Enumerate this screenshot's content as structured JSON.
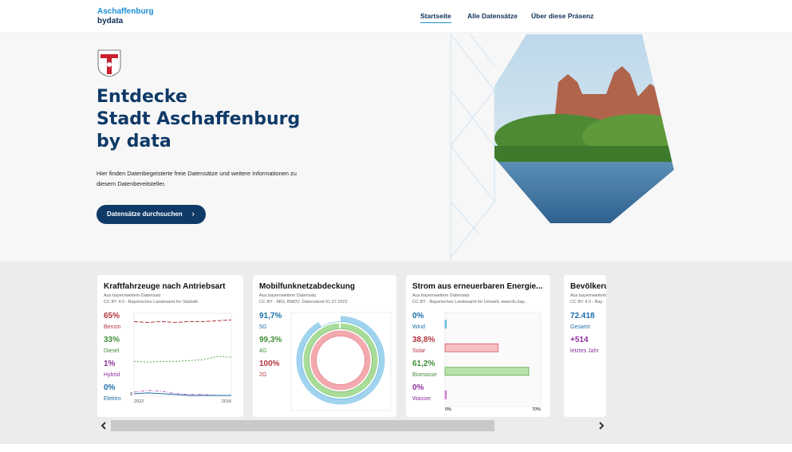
{
  "header": {
    "logo_line1": "Aschaffenburg",
    "logo_line2": "bydata",
    "nav": [
      "Startseite",
      "Alle Datensätze",
      "Über diese Präsenz"
    ]
  },
  "hero": {
    "title_lines": [
      "Entdecke",
      "Stadt Aschaffenburg",
      "by data"
    ],
    "description_lines": [
      "Hier finden Datenbegeisterte freie Datensätze und weitere Informationen zu",
      "diesem Datenbereitsteller."
    ],
    "button": "Datensätze durchsuchen"
  },
  "cards": [
    {
      "title": "Kraftfahrzeuge nach Antriebsart",
      "source_lines": [
        "Aus bayernweitem Datensatz",
        "CC BY 4.0 - Bayerisches Landesamt für Statistik"
      ],
      "stats": [
        {
          "value": "65%",
          "label": "Benzin",
          "color": "#b3343f"
        },
        {
          "value": "33%",
          "label": "Diesel",
          "color": "#3f8f3a"
        },
        {
          "value": "1%",
          "label": "Hybrid",
          "color": "#8e2f9e"
        },
        {
          "value": "0%",
          "label": "Elektro",
          "color": "#1c6fa8"
        }
      ],
      "chart": {
        "type": "line",
        "x_labels": [
          "2022",
          "2018"
        ],
        "ylim": [
          0,
          100
        ],
        "yticks": [
          0
        ],
        "series": [
          {
            "color": "#b3343f",
            "values": [
              90,
              89,
              90,
              89,
              90,
              90,
              91,
              92
            ]
          },
          {
            "color": "#5aa84f",
            "values": [
              42,
              41,
              42,
              42,
              43,
              44,
              48,
              47
            ]
          },
          {
            "color": "#c25cc9",
            "values": [
              5,
              7,
              6,
              3,
              2,
              2,
              1,
              1
            ]
          },
          {
            "color": "#1c6fa8",
            "values": [
              3,
              4,
              3,
              2,
              1,
              1,
              1,
              1
            ]
          }
        ]
      }
    },
    {
      "title": "Mobilfunknetzabdeckung",
      "source_lines": [
        "Aus bayernweitem Datensatz",
        "CC BY - MIG, BMDV. Datenstand 01.07.2022"
      ],
      "stats": [
        {
          "value": "91,7%",
          "label": "5G",
          "color": "#1c6fa8"
        },
        {
          "value": "99,3%",
          "label": "4G",
          "color": "#3f8f3a"
        },
        {
          "value": "100%",
          "label": "2G",
          "color": "#b3343f"
        }
      ],
      "chart": {
        "type": "rings",
        "values": [
          91.7,
          99.3,
          100
        ],
        "colors": [
          "#9fd3ee",
          "#a8dc98",
          "#f3a9ae"
        ],
        "strokes": [
          "#4aa3d6",
          "#5aa84f",
          "#d9535e"
        ]
      }
    },
    {
      "title": "Strom aus erneuerbaren Energie...",
      "source_lines": [
        "Aus bayernweitem Datensatz",
        "CC BY - Bayerisches Landesamt für Umwelt, www.lfu.bay..."
      ],
      "stats": [
        {
          "value": "0%",
          "label": "Wind",
          "color": "#1c6fa8"
        },
        {
          "value": "38,8%",
          "label": "Solar",
          "color": "#b3343f"
        },
        {
          "value": "61,2%",
          "label": "Biomasse",
          "color": "#3f8f3a"
        },
        {
          "value": "0%",
          "label": "Wasser",
          "color": "#8e2f9e"
        }
      ],
      "chart": {
        "type": "hbar",
        "values": [
          0,
          38.8,
          61.2,
          0
        ],
        "colors": [
          "#9fd3ee",
          "#f7c1c5",
          "#b9e3a8",
          "#e6b3ea"
        ],
        "strokes": [
          "#4aa3d6",
          "#d9535e",
          "#5aa84f",
          "#c25cc9"
        ],
        "xlim": [
          0,
          70
        ],
        "xticks": [
          {
            "value": 0,
            "label": "0%"
          },
          {
            "value": 70,
            "label": "70%"
          }
        ]
      }
    },
    {
      "title": "Bevölkeru",
      "source_lines": [
        "Aus bayernweitem Datensatz",
        "CC BY 4.0 - Bay"
      ],
      "stats": [
        {
          "value": "72.418",
          "label": "Gesamt",
          "color": "#1c6fa8"
        },
        {
          "value": "+514",
          "label": "letztes Jahr",
          "color": "#8e2f9e"
        }
      ]
    }
  ]
}
